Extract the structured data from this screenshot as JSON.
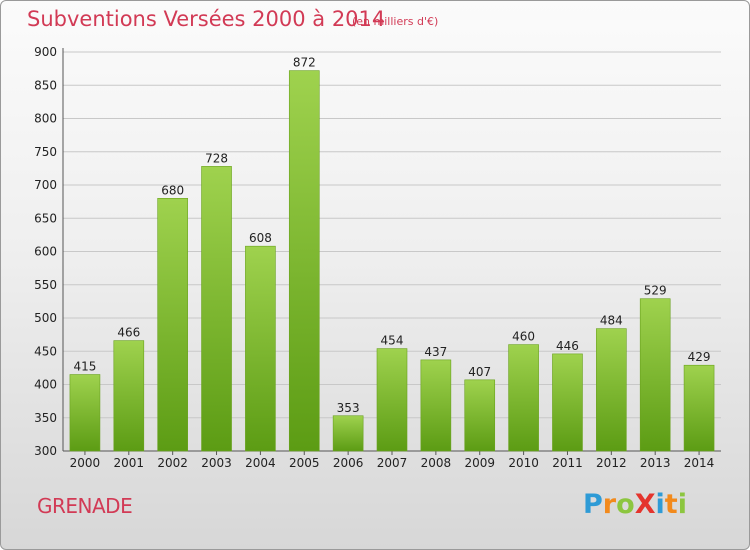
{
  "title": "Subventions Versées 2000 à 2014",
  "subtitle": "(en milliers d'€)",
  "commune": "GRENADE",
  "logo": {
    "text": "ProXiti",
    "letters": [
      {
        "ch": "P",
        "color": "#2e9bd6"
      },
      {
        "ch": "r",
        "color": "#f28a1c"
      },
      {
        "ch": "o",
        "color": "#8cc63f"
      },
      {
        "ch": "X",
        "color": "#e4342d"
      },
      {
        "ch": "i",
        "color": "#2e9bd6"
      },
      {
        "ch": "t",
        "color": "#f28a1c"
      },
      {
        "ch": "i",
        "color": "#8cc63f"
      }
    ]
  },
  "colors": {
    "title": "#d23a55",
    "bar_light": "#9fd24e",
    "bar_dark": "#5c9c14",
    "grid": "#c8c8c8"
  },
  "chart_data": {
    "type": "bar",
    "title": "Subventions Versées 2000 à 2014",
    "subtitle": "(en milliers d'€)",
    "categories": [
      "2000",
      "2001",
      "2002",
      "2003",
      "2004",
      "2005",
      "2006",
      "2007",
      "2008",
      "2009",
      "2010",
      "2011",
      "2012",
      "2013",
      "2014"
    ],
    "values": [
      415,
      466,
      680,
      728,
      608,
      872,
      353,
      454,
      437,
      407,
      460,
      446,
      484,
      529,
      429
    ],
    "ylim": [
      300,
      900
    ],
    "yticks": [
      300,
      350,
      400,
      450,
      500,
      550,
      600,
      650,
      700,
      750,
      800,
      850,
      900
    ],
    "grid": true,
    "xlabel": "",
    "ylabel": ""
  }
}
